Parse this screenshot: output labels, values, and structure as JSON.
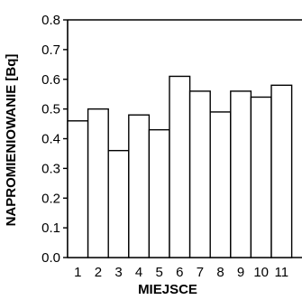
{
  "chart_data": {
    "type": "bar",
    "categories": [
      "1",
      "2",
      "3",
      "4",
      "5",
      "6",
      "7",
      "8",
      "9",
      "10",
      "11"
    ],
    "values": [
      0.46,
      0.5,
      0.36,
      0.48,
      0.43,
      0.61,
      0.56,
      0.49,
      0.56,
      0.54,
      0.58
    ],
    "xlabel": "MIEJSCE",
    "ylabel": "NAPROMIENIOWANIE [Bq]",
    "ylim": [
      0.0,
      0.8
    ],
    "yticks": [
      "0.0",
      "0.1",
      "0.2",
      "0.3",
      "0.4",
      "0.5",
      "0.6",
      "0.7",
      "0.8"
    ],
    "grid": false,
    "colors": {
      "bar_fill": "#ffffff",
      "bar_stroke": "#000000",
      "axis": "#000000"
    }
  }
}
